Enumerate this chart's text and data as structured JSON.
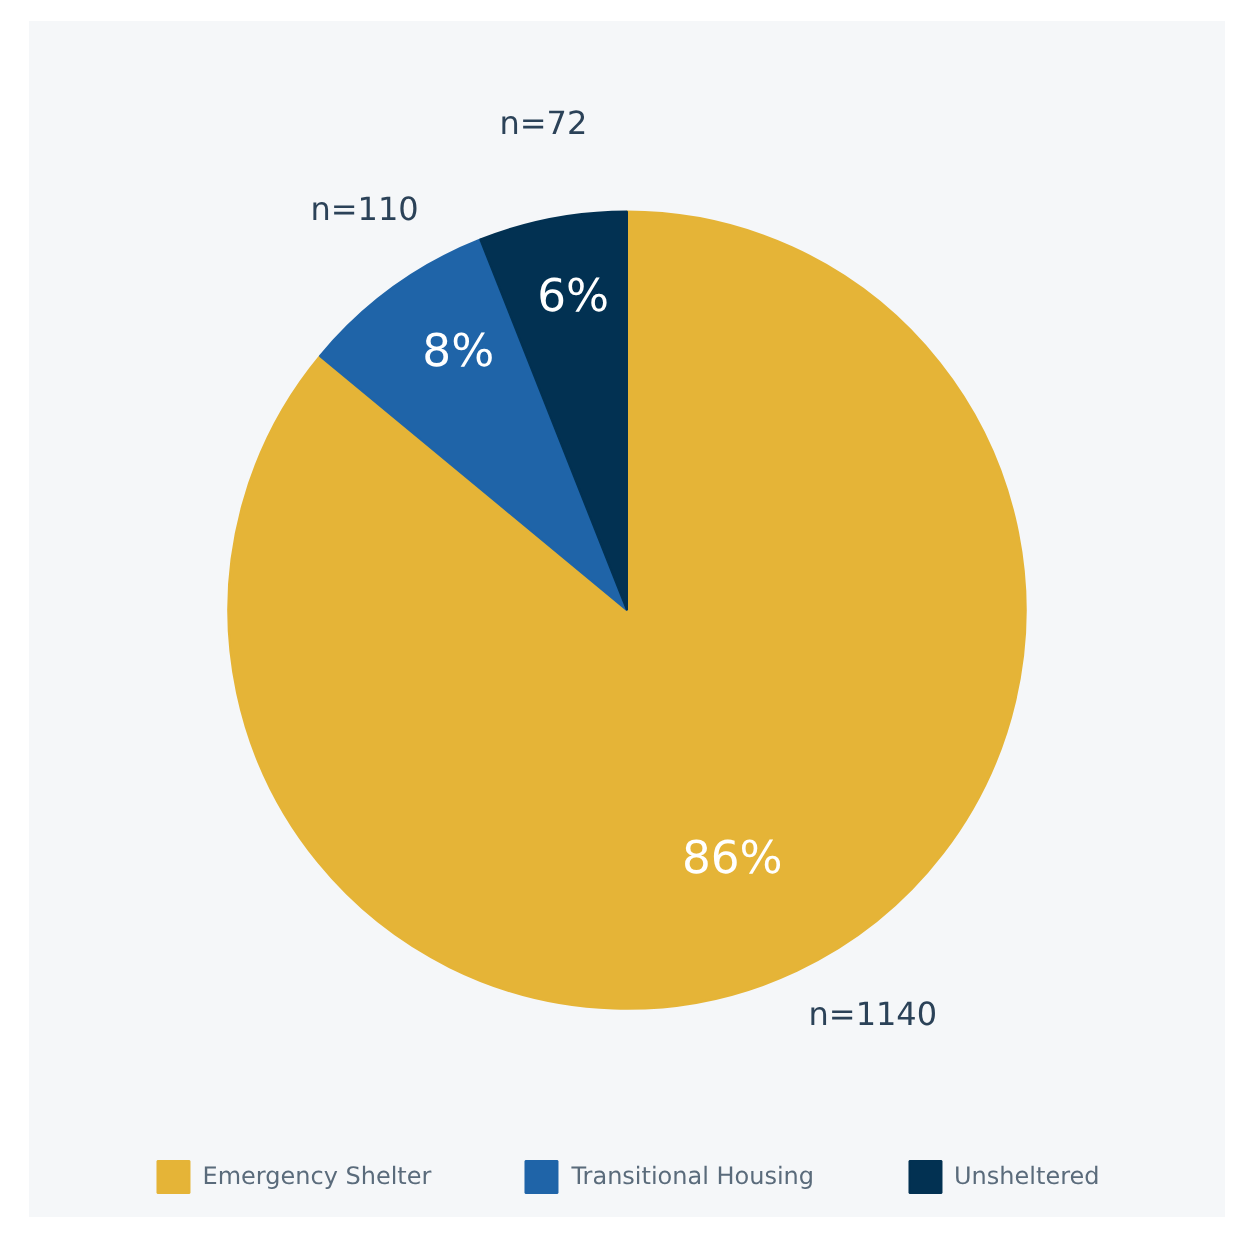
{
  "chart_data": {
    "type": "pie",
    "categories": [
      "Emergency Shelter",
      "Transitional Housing",
      "Unsheltered"
    ],
    "values": [
      86,
      8,
      6
    ],
    "colors": [
      "#e5b437",
      "#1f64a8",
      "#023152"
    ],
    "value_labels": [
      "86%",
      "8%",
      "6%"
    ],
    "annotations": [
      "n=1140",
      "n=110",
      "n=72"
    ],
    "legend": "bottom"
  }
}
